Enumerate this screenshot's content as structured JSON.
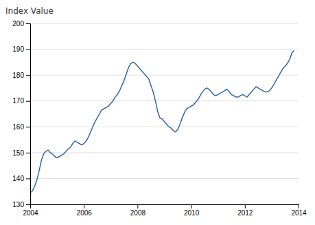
{
  "chart_data": {
    "type": "line",
    "ylabel": "Index Value",
    "color": "#3366aa",
    "grid": true,
    "xlim": [
      2004,
      2014
    ],
    "xticks": [
      2004,
      2006,
      2008,
      2010,
      2012,
      2014
    ],
    "ylim": [
      130,
      200
    ],
    "yticks": [
      130,
      140,
      150,
      160,
      170,
      180,
      190,
      200
    ],
    "x": [
      2004.0,
      2004.083,
      2004.167,
      2004.25,
      2004.333,
      2004.417,
      2004.5,
      2004.583,
      2004.667,
      2004.75,
      2004.833,
      2004.917,
      2005.0,
      2005.083,
      2005.167,
      2005.25,
      2005.333,
      2005.417,
      2005.5,
      2005.583,
      2005.667,
      2005.75,
      2005.833,
      2005.917,
      2006.0,
      2006.083,
      2006.167,
      2006.25,
      2006.333,
      2006.417,
      2006.5,
      2006.583,
      2006.667,
      2006.75,
      2006.833,
      2006.917,
      2007.0,
      2007.083,
      2007.167,
      2007.25,
      2007.333,
      2007.417,
      2007.5,
      2007.583,
      2007.667,
      2007.75,
      2007.833,
      2007.917,
      2008.0,
      2008.083,
      2008.167,
      2008.25,
      2008.333,
      2008.417,
      2008.5,
      2008.583,
      2008.667,
      2008.75,
      2008.833,
      2008.917,
      2009.0,
      2009.083,
      2009.167,
      2009.25,
      2009.333,
      2009.417,
      2009.5,
      2009.583,
      2009.667,
      2009.75,
      2009.833,
      2009.917,
      2010.0,
      2010.083,
      2010.167,
      2010.25,
      2010.333,
      2010.417,
      2010.5,
      2010.583,
      2010.667,
      2010.75,
      2010.833,
      2010.917,
      2011.0,
      2011.083,
      2011.167,
      2011.25,
      2011.333,
      2011.417,
      2011.5,
      2011.583,
      2011.667,
      2011.75,
      2011.833,
      2011.917,
      2012.0,
      2012.083,
      2012.167,
      2012.25,
      2012.333,
      2012.417,
      2012.5,
      2012.583,
      2012.667,
      2012.75,
      2012.833,
      2012.917,
      2013.0,
      2013.083,
      2013.167,
      2013.25,
      2013.333,
      2013.417,
      2013.5,
      2013.583,
      2013.667,
      2013.75,
      2013.833
    ],
    "values": [
      134.5,
      135.2,
      137.0,
      139.5,
      143.0,
      147.0,
      149.5,
      150.5,
      151.0,
      150.0,
      149.5,
      148.5,
      148.0,
      148.5,
      149.0,
      149.5,
      150.5,
      151.5,
      152.0,
      153.5,
      154.5,
      154.0,
      153.5,
      153.0,
      153.5,
      154.5,
      156.0,
      158.0,
      160.0,
      162.0,
      163.5,
      165.0,
      166.5,
      167.0,
      167.5,
      168.0,
      169.0,
      170.0,
      171.5,
      172.5,
      174.0,
      176.0,
      178.0,
      180.5,
      183.0,
      184.5,
      185.0,
      184.5,
      183.5,
      182.5,
      181.5,
      180.5,
      179.5,
      178.5,
      176.0,
      173.5,
      170.0,
      166.0,
      163.5,
      163.0,
      162.0,
      161.0,
      160.0,
      159.5,
      158.5,
      158.0,
      159.0,
      161.0,
      163.5,
      165.5,
      167.0,
      167.5,
      168.0,
      168.5,
      169.5,
      170.5,
      172.0,
      173.5,
      174.5,
      175.0,
      174.5,
      173.5,
      172.5,
      172.0,
      172.5,
      173.0,
      173.5,
      174.0,
      174.5,
      173.5,
      172.5,
      172.0,
      171.5,
      171.5,
      172.0,
      172.5,
      172.0,
      171.5,
      172.5,
      173.5,
      174.5,
      175.5,
      175.0,
      174.5,
      174.0,
      173.5,
      173.5,
      174.0,
      175.0,
      176.5,
      178.0,
      179.5,
      181.0,
      182.5,
      183.5,
      184.5,
      186.0,
      188.5,
      189.5
    ]
  }
}
